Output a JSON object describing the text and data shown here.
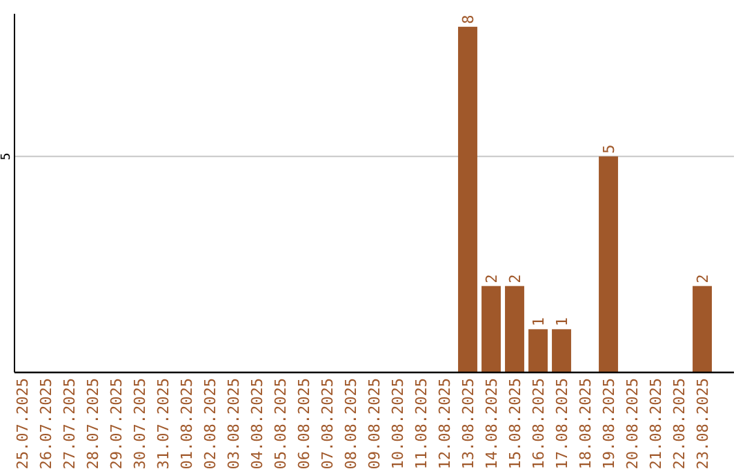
{
  "chart_data": {
    "type": "bar",
    "categories": [
      "25.07.2025",
      "26.07.2025",
      "27.07.2025",
      "28.07.2025",
      "29.07.2025",
      "30.07.2025",
      "31.07.2025",
      "01.08.2025",
      "02.08.2025",
      "03.08.2025",
      "04.08.2025",
      "05.08.2025",
      "06.08.2025",
      "07.08.2025",
      "08.08.2025",
      "09.08.2025",
      "10.08.2025",
      "11.08.2025",
      "12.08.2025",
      "13.08.2025",
      "14.08.2025",
      "15.08.2025",
      "16.08.2025",
      "17.08.2025",
      "18.08.2025",
      "19.08.2025",
      "20.08.2025",
      "21.08.2025",
      "22.08.2025",
      "23.08.2025"
    ],
    "values": [
      null,
      null,
      null,
      null,
      null,
      null,
      null,
      null,
      null,
      null,
      null,
      null,
      null,
      null,
      null,
      null,
      null,
      null,
      null,
      8,
      2,
      2,
      1,
      1,
      null,
      5,
      null,
      null,
      null,
      2
    ],
    "data_labels": true,
    "color": "#a0582a",
    "ylim": [
      0,
      8.3
    ],
    "ref_lines": [
      {
        "axis": "y",
        "value": 5,
        "label": "5",
        "color": "#c8c8c8"
      }
    ]
  }
}
